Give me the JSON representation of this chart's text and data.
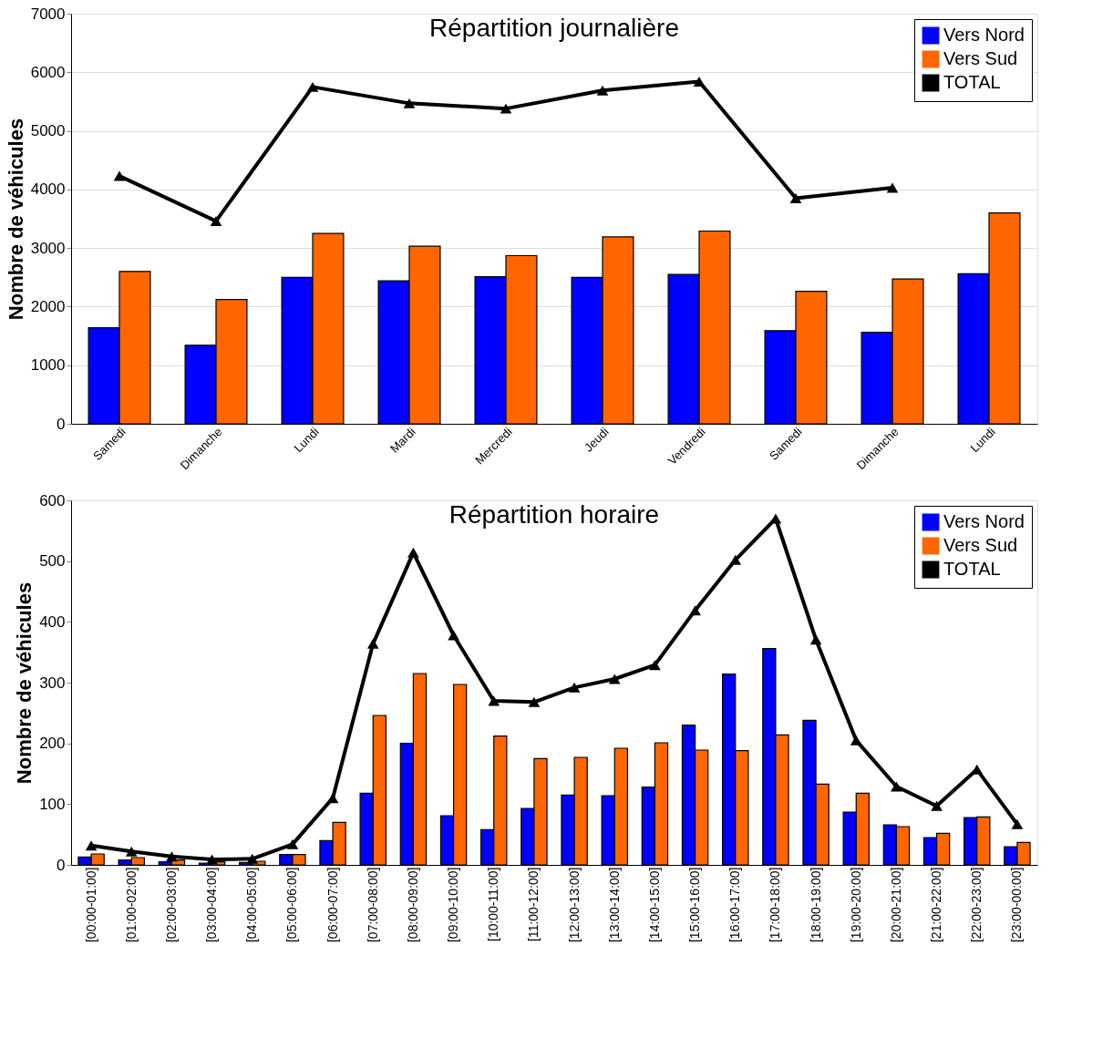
{
  "chart_data": [
    {
      "type": "bar",
      "title": "Répartition journalière",
      "ylabel": "Nombre de véhicules",
      "categories": [
        "Samedi",
        "Dimanche",
        "Lundi",
        "Mardi",
        "Mercredi",
        "Jeudi",
        "Vendredi",
        "Samedi",
        "Dimanche",
        "Lundi"
      ],
      "series": [
        {
          "name": "Vers Nord",
          "color": "#0000ff",
          "values": [
            1640,
            1340,
            2500,
            2440,
            2510,
            2500,
            2550,
            1590,
            1560,
            2560
          ]
        },
        {
          "name": "Vers Sud",
          "color": "#ff6600",
          "values": [
            2600,
            2120,
            3250,
            3030,
            2870,
            3190,
            3290,
            2260,
            2470,
            3600
          ]
        },
        {
          "name": "TOTAL",
          "type": "line",
          "color": "#000000",
          "marker": "triangle",
          "values": [
            4230,
            3460,
            5750,
            5470,
            5380,
            5690,
            5840,
            3850,
            4030,
            null
          ]
        }
      ],
      "ylim": [
        0,
        7000
      ],
      "yticks": [
        0,
        1000,
        2000,
        3000,
        4000,
        5000,
        6000,
        7000
      ],
      "grid": "y",
      "legend": "top right"
    },
    {
      "type": "bar",
      "title": "Répartition horaire",
      "ylabel": "Nombre de véhicules",
      "categories": [
        "[00:00-01:00]",
        "[01:00-02:00]",
        "[02:00-03:00]",
        "[03:00-04:00]",
        "[04:00-05:00]",
        "[05:00-06:00]",
        "[06:00-07:00]",
        "[07:00-08:00]",
        "[08:00-09:00]",
        "[09:00-10:00]",
        "[10:00-11:00]",
        "[11:00-12:00]",
        "[12:00-13:00]",
        "[13:00-14:00]",
        "[14:00-15:00]",
        "[15:00-16:00]",
        "[16:00-17:00]",
        "[17:00-18:00]",
        "[18:00-19:00]",
        "[19:00-20:00]",
        "[20:00-21:00]",
        "[21:00-22:00]",
        "[22:00-23:00]",
        "[23:00-00:00]"
      ],
      "series": [
        {
          "name": "Vers Nord",
          "color": "#0000ff",
          "values": [
            13,
            8,
            5,
            3,
            4,
            17,
            40,
            118,
            200,
            81,
            58,
            93,
            115,
            114,
            128,
            230,
            314,
            356,
            238,
            87,
            66,
            45,
            78,
            30
          ]
        },
        {
          "name": "Vers Sud",
          "color": "#ff6600",
          "values": [
            18,
            12,
            8,
            5,
            6,
            17,
            70,
            246,
            315,
            297,
            212,
            175,
            177,
            192,
            201,
            189,
            188,
            214,
            133,
            118,
            63,
            52,
            79,
            37
          ]
        },
        {
          "name": "TOTAL",
          "type": "line",
          "color": "#000000",
          "marker": "triangle",
          "values": [
            32,
            22,
            14,
            9,
            10,
            34,
            110,
            364,
            514,
            378,
            270,
            268,
            292,
            306,
            329,
            419,
            502,
            570,
            371,
            205,
            129,
            97,
            157,
            67
          ]
        }
      ],
      "ylim": [
        0,
        600
      ],
      "yticks": [
        0,
        100,
        200,
        300,
        400,
        500,
        600
      ],
      "legend": "top right"
    }
  ]
}
